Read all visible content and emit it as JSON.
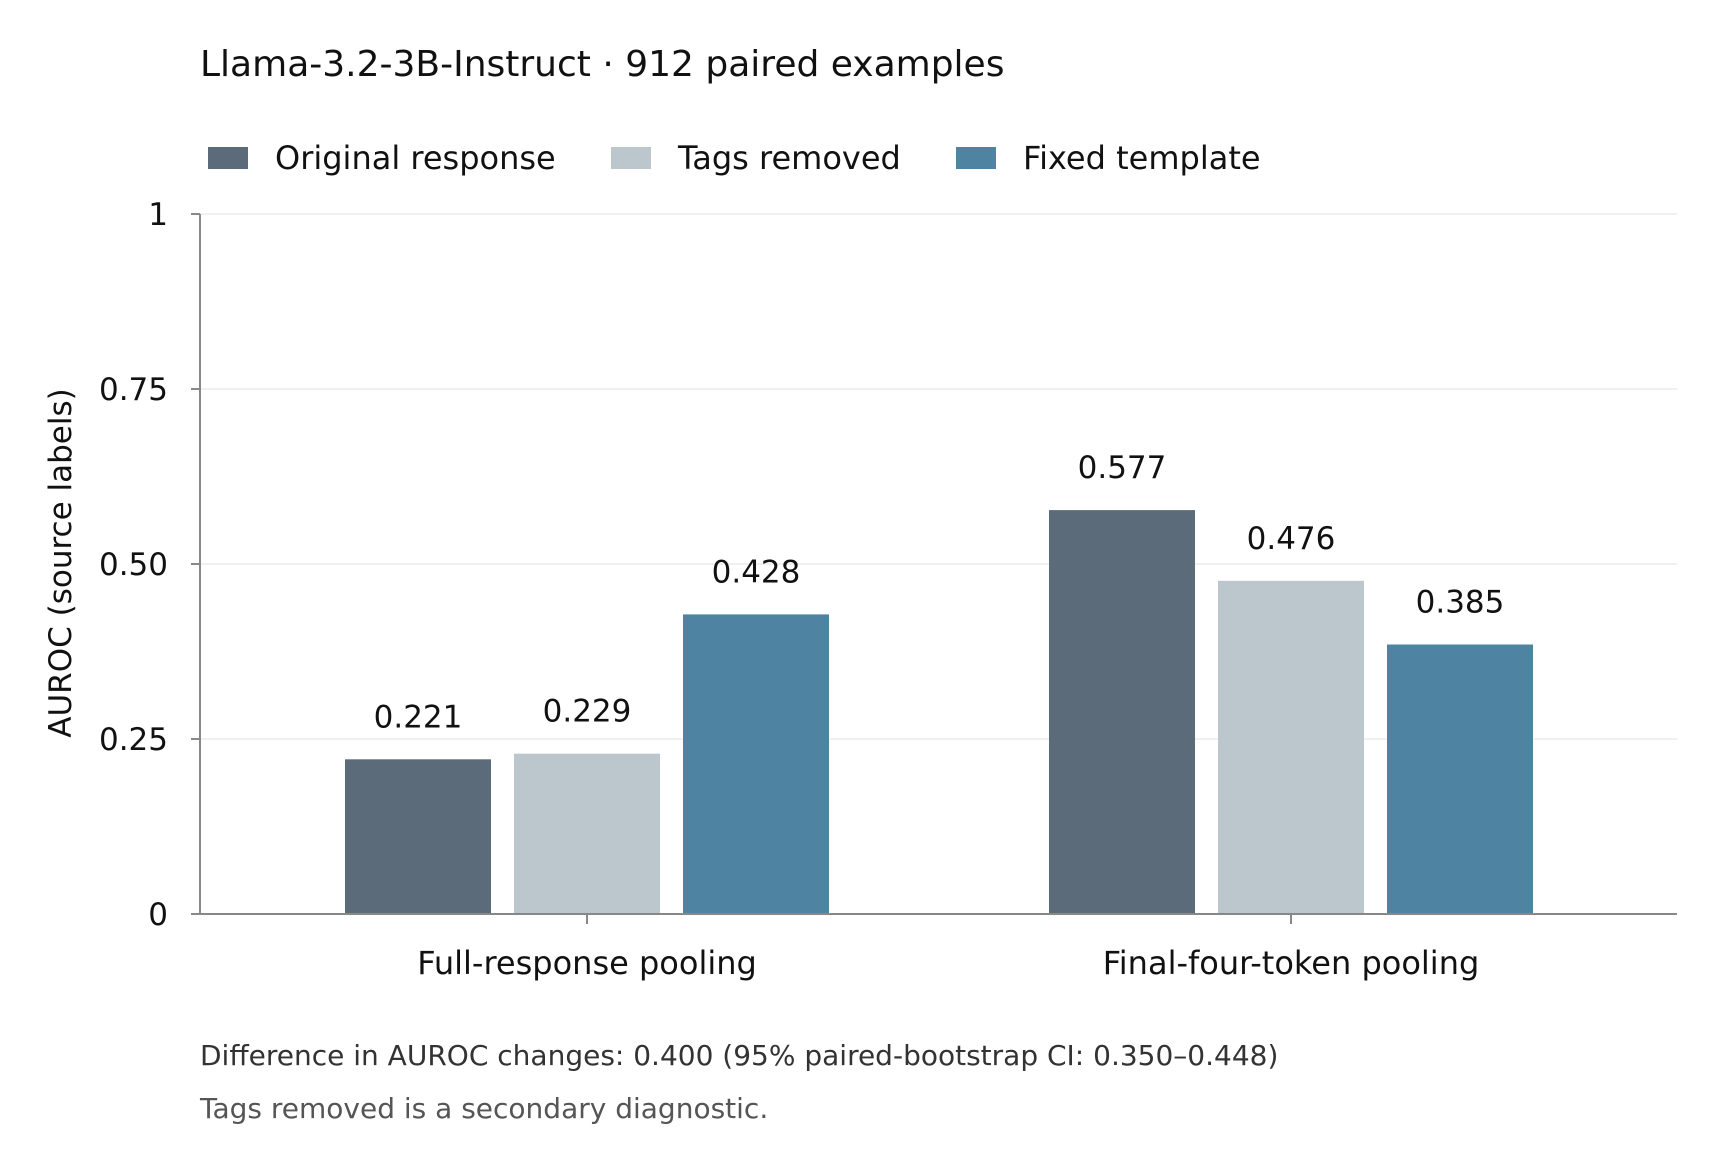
{
  "chart_data": {
    "type": "bar",
    "title": "Llama-3.2-3B-Instruct · 912 paired examples",
    "ylabel": "AUROC (source labels)",
    "xlabel": "",
    "ylim": [
      0,
      1
    ],
    "yticks": [
      {
        "value": 0,
        "label": "0"
      },
      {
        "value": 0.25,
        "label": "0.25"
      },
      {
        "value": 0.5,
        "label": "0.50"
      },
      {
        "value": 0.75,
        "label": "0.75"
      },
      {
        "value": 1,
        "label": "1"
      }
    ],
    "grid": true,
    "legend_position": "top-left",
    "categories": [
      "Full-response pooling",
      "Final-four-token pooling"
    ],
    "series": [
      {
        "name": "Original response",
        "color": "#5b6b79",
        "values": [
          0.221,
          0.577
        ],
        "labels": [
          "0.221",
          "0.577"
        ]
      },
      {
        "name": "Tags removed",
        "color": "#bcc7cd",
        "values": [
          0.229,
          0.476
        ],
        "labels": [
          "0.229",
          "0.476"
        ]
      },
      {
        "name": "Fixed template",
        "color": "#4e83a2",
        "values": [
          0.428,
          0.385
        ],
        "labels": [
          "0.428",
          "0.385"
        ]
      }
    ],
    "annotations": [
      "Difference in AUROC changes: 0.400  (95% paired-bootstrap CI: 0.350–0.448)",
      "Tags removed is a secondary diagnostic."
    ]
  }
}
